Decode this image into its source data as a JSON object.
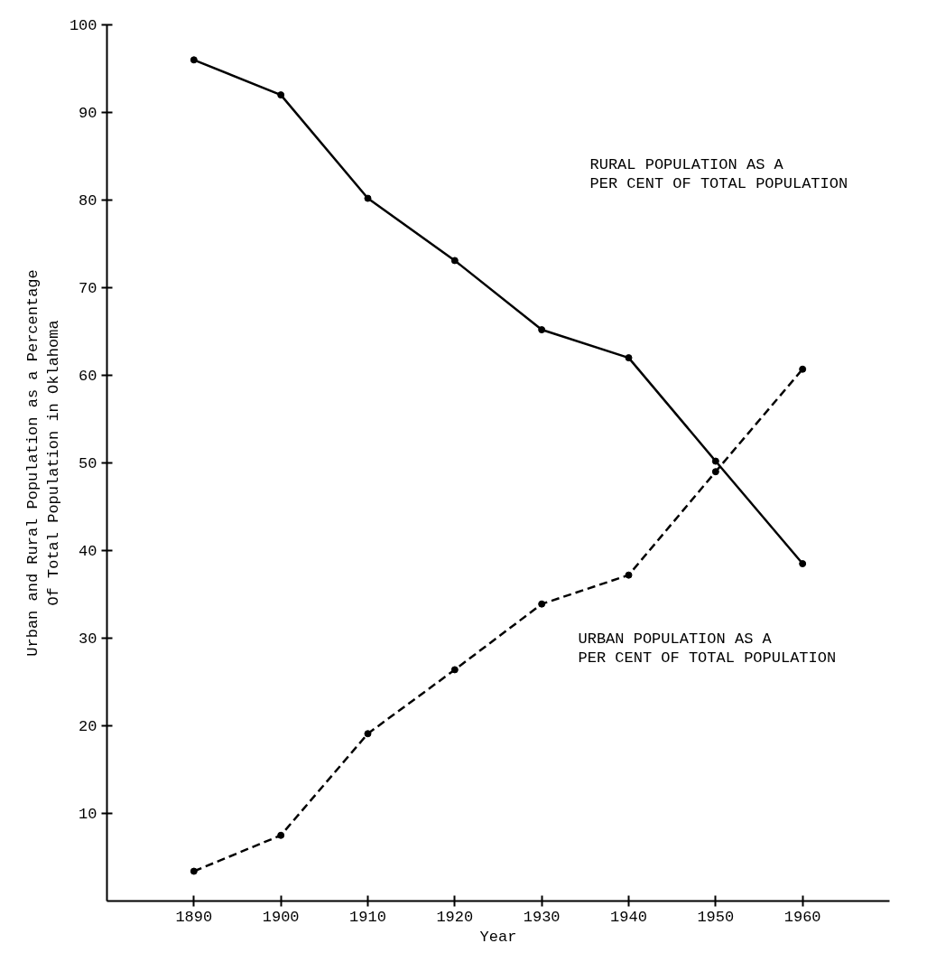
{
  "chart_data": {
    "type": "line",
    "xlabel": "Year",
    "ylabel": "Urban and Rural Population as a Percentage\nOf Total Population in Oklahoma",
    "x": [
      1890,
      1900,
      1910,
      1920,
      1930,
      1940,
      1950,
      1960
    ],
    "series": [
      {
        "color": "#000000",
        "line_style": "solid",
        "values": [
          96,
          92,
          80.2,
          73.1,
          65.2,
          62,
          50.2,
          38.5
        ]
      },
      {
        "color": "#000000",
        "line_style": "dashed",
        "values": [
          3.4,
          7.5,
          19.1,
          26.4,
          33.9,
          37.2,
          49,
          60.7
        ]
      }
    ],
    "xlim": [
      1880,
      1970
    ],
    "ylim": [
      0,
      100
    ],
    "xticks": [
      1890,
      1900,
      1910,
      1920,
      1930,
      1940,
      1950,
      1960
    ],
    "yticks": [
      10,
      20,
      30,
      40,
      50,
      60,
      70,
      80,
      90,
      100
    ],
    "marker": "circle",
    "grid": false,
    "annotations": [
      "RURAL POPULATION AS A\n  PER CENT OF TOTAL POPULATION",
      "URBAN POPULATION AS A\nPER CENT OF TOTAL POPULATION"
    ]
  }
}
